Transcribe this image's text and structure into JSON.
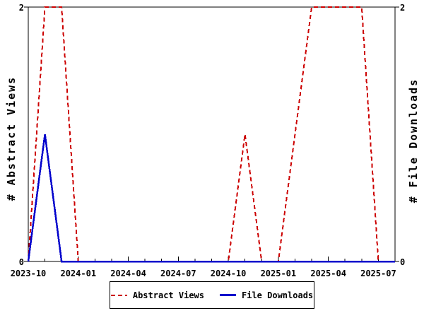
{
  "chart_data": {
    "type": "line",
    "title": "",
    "x": [
      "2023-10",
      "2023-11",
      "2023-12",
      "2024-01",
      "2024-02",
      "2024-03",
      "2024-04",
      "2024-05",
      "2024-06",
      "2024-07",
      "2024-08",
      "2024-09",
      "2024-10",
      "2024-11",
      "2024-12",
      "2025-01",
      "2025-02",
      "2025-03",
      "2025-04",
      "2025-05",
      "2025-06",
      "2025-07",
      "2025-08"
    ],
    "x_tick_labels": [
      "2023-10",
      "2024-01",
      "2024-04",
      "2024-07",
      "2024-10",
      "2025-01",
      "2025-04",
      "2025-07"
    ],
    "x_tick_every": 3,
    "ylim": [
      0,
      2
    ],
    "y_ticks": [
      0,
      2
    ],
    "ylabel_left": "# Abstract Views",
    "ylabel_right": "# File Downloads",
    "grid": false,
    "legend_position": "bottom",
    "series": [
      {
        "name": "Abstract Views",
        "style": "dashed",
        "color": "#cc0000",
        "axis": "left",
        "values": [
          0,
          2,
          2,
          0,
          0,
          0,
          0,
          0,
          0,
          0,
          0,
          0,
          0,
          1,
          0,
          0,
          1,
          2,
          2,
          2,
          2,
          0,
          0
        ]
      },
      {
        "name": "File Downloads",
        "style": "solid",
        "color": "#0000cc",
        "axis": "right",
        "values": [
          0,
          1,
          0,
          0,
          0,
          0,
          0,
          0,
          0,
          0,
          0,
          0,
          0,
          0,
          0,
          0,
          0,
          0,
          0,
          0,
          0,
          0,
          0
        ]
      }
    ]
  },
  "colors": {
    "axis": "#000000",
    "text": "#000000",
    "background": "#ffffff"
  }
}
